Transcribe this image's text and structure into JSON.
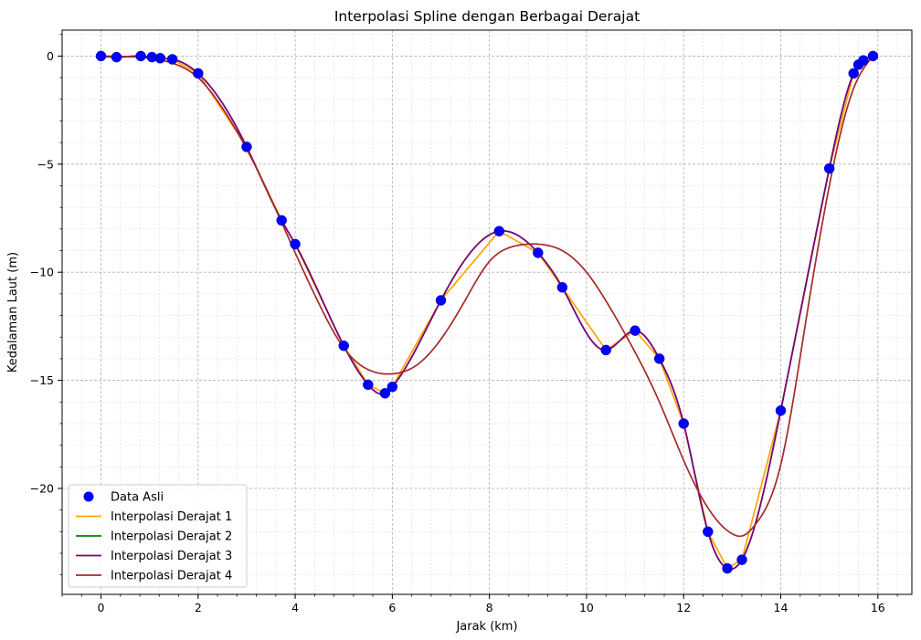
{
  "chart_data": {
    "type": "line",
    "title": "Interpolasi Spline dengan Berbagai Derajat",
    "xlabel": "Jarak (km)",
    "ylabel": "Kedalaman Laut (m)",
    "xlim": [
      -0.8,
      16.7
    ],
    "ylim": [
      -24.9,
      1.2
    ],
    "xticks": [
      0,
      2,
      4,
      6,
      8,
      10,
      12,
      14,
      16
    ],
    "xtick_labels": [
      "0",
      "2",
      "4",
      "6",
      "8",
      "10",
      "12",
      "14",
      "16"
    ],
    "yticks": [
      0,
      -5,
      -10,
      -15,
      -20
    ],
    "ytick_labels": [
      "0",
      "−5",
      "−10",
      "−15",
      "−20"
    ],
    "x_minor_step": 0.4,
    "y_minor_step": 1,
    "grid": true,
    "legend_position": "lower left",
    "data_points": {
      "name": "Data Asli",
      "color": "#0000ff",
      "x": [
        0,
        0.32,
        0.82,
        1.05,
        1.22,
        1.47,
        2.0,
        3.0,
        3.72,
        4.0,
        5.0,
        5.5,
        5.85,
        6.0,
        7.0,
        8.2,
        9.0,
        9.5,
        10.4,
        11.0,
        11.5,
        12.0,
        12.5,
        12.9,
        13.2,
        14.0,
        15.0,
        15.5,
        15.6,
        15.7,
        15.9
      ],
      "y": [
        0,
        -0.05,
        0,
        -0.05,
        -0.1,
        -0.15,
        -0.8,
        -4.2,
        -7.6,
        -8.7,
        -13.4,
        -15.2,
        -15.6,
        -15.3,
        -11.3,
        -8.1,
        -9.1,
        -10.7,
        -13.6,
        -12.7,
        -14.0,
        -17.0,
        -22.0,
        -23.7,
        -23.3,
        -16.4,
        -5.2,
        -0.8,
        -0.4,
        -0.2,
        0
      ]
    },
    "series": [
      {
        "name": "Interpolasi Derajat 1",
        "color": "#ffa500",
        "style": "linear"
      },
      {
        "name": "Interpolasi Derajat 2",
        "color": "#008000",
        "style": "smooth"
      },
      {
        "name": "Interpolasi Derajat 3",
        "color": "#800080",
        "style": "smooth"
      },
      {
        "name": "Interpolasi Derajat 4",
        "color": "#a52a2a",
        "style": "smooth-approx",
        "x": [
          0,
          0.5,
          1.0,
          1.5,
          2.0,
          2.5,
          3.0,
          3.5,
          4.0,
          4.5,
          5.0,
          5.5,
          6.0,
          6.5,
          7.0,
          7.5,
          8.0,
          8.5,
          9.0,
          9.5,
          10.0,
          10.5,
          11.0,
          11.5,
          12.0,
          12.5,
          13.0,
          13.2,
          13.5,
          14.0,
          14.5,
          15.0,
          15.5,
          15.9
        ],
        "y": [
          0,
          -0.02,
          -0.1,
          -0.35,
          -1.0,
          -2.4,
          -4.3,
          -6.6,
          -9.1,
          -11.5,
          -13.5,
          -14.5,
          -14.7,
          -14.3,
          -13.1,
          -11.3,
          -9.5,
          -8.8,
          -8.7,
          -9.0,
          -10.0,
          -11.7,
          -13.7,
          -16.0,
          -18.7,
          -20.9,
          -22.1,
          -22.2,
          -21.6,
          -18.9,
          -12.5,
          -6.0,
          -1.5,
          0
        ]
      }
    ]
  }
}
